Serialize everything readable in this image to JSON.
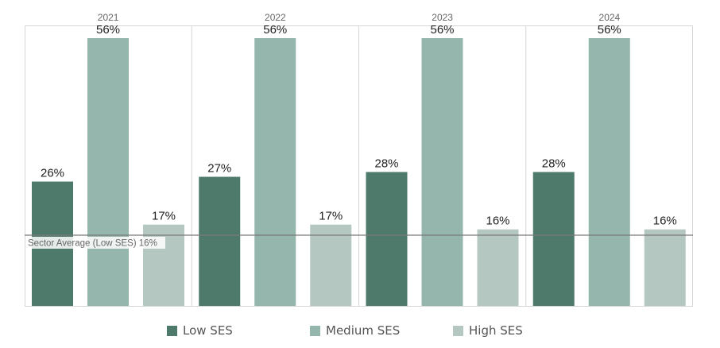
{
  "chart_data": {
    "type": "bar",
    "panels": [
      "2021",
      "2022",
      "2023",
      "2024"
    ],
    "series": [
      {
        "name": "Low SES",
        "color": "#4e7a6c",
        "values": [
          26,
          27,
          28,
          28
        ],
        "labels": [
          "26%",
          "27%",
          "28%",
          "28%"
        ]
      },
      {
        "name": "Medium SES",
        "color": "#94b6ac",
        "values": [
          56,
          56,
          56,
          56
        ],
        "labels": [
          "56%",
          "56%",
          "56%",
          "56%"
        ]
      },
      {
        "name": "High SES",
        "color": "#b5c7c1",
        "values": [
          17,
          17,
          16,
          16
        ],
        "labels": [
          "17%",
          "17%",
          "16%",
          "16%"
        ]
      }
    ],
    "ylim": [
      0,
      56
    ],
    "grid": false,
    "reference_line": {
      "label": "Sector Average (Low SES) 16%",
      "value": 16
    },
    "legend": {
      "position": "bottom"
    }
  }
}
